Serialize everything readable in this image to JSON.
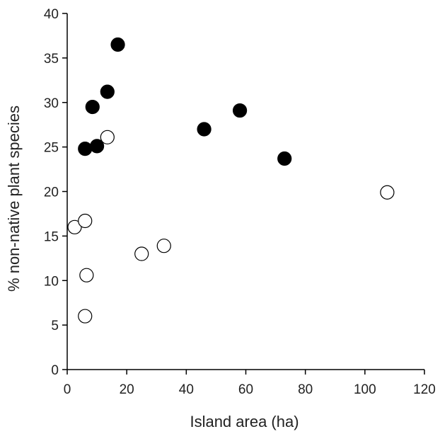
{
  "chart_data": {
    "type": "scatter",
    "title": "",
    "xlabel": "Island area (ha)",
    "ylabel": "% non-native plant species",
    "xlim": [
      0,
      120
    ],
    "ylim": [
      0,
      40
    ],
    "xticks": [
      0,
      20,
      40,
      60,
      80,
      100,
      120
    ],
    "yticks": [
      0,
      5,
      10,
      15,
      20,
      25,
      30,
      35,
      40
    ],
    "grid": false,
    "legend": "none",
    "series": [
      {
        "marker": "filled-circle",
        "color": "#000000",
        "points": [
          {
            "x": 6,
            "y": 24.8
          },
          {
            "x": 10,
            "y": 25.1
          },
          {
            "x": 8.5,
            "y": 29.5
          },
          {
            "x": 13.5,
            "y": 31.2
          },
          {
            "x": 17,
            "y": 36.5
          },
          {
            "x": 46,
            "y": 27.0
          },
          {
            "x": 58,
            "y": 29.1
          },
          {
            "x": 73,
            "y": 23.7
          }
        ]
      },
      {
        "marker": "open-circle",
        "color": "#000000",
        "points": [
          {
            "x": 2.5,
            "y": 16.0
          },
          {
            "x": 6,
            "y": 16.7
          },
          {
            "x": 6.5,
            "y": 10.6
          },
          {
            "x": 6,
            "y": 6.0
          },
          {
            "x": 13.5,
            "y": 26.1
          },
          {
            "x": 25,
            "y": 13.0
          },
          {
            "x": 32.5,
            "y": 13.9
          },
          {
            "x": 107.5,
            "y": 19.9
          }
        ]
      }
    ]
  }
}
